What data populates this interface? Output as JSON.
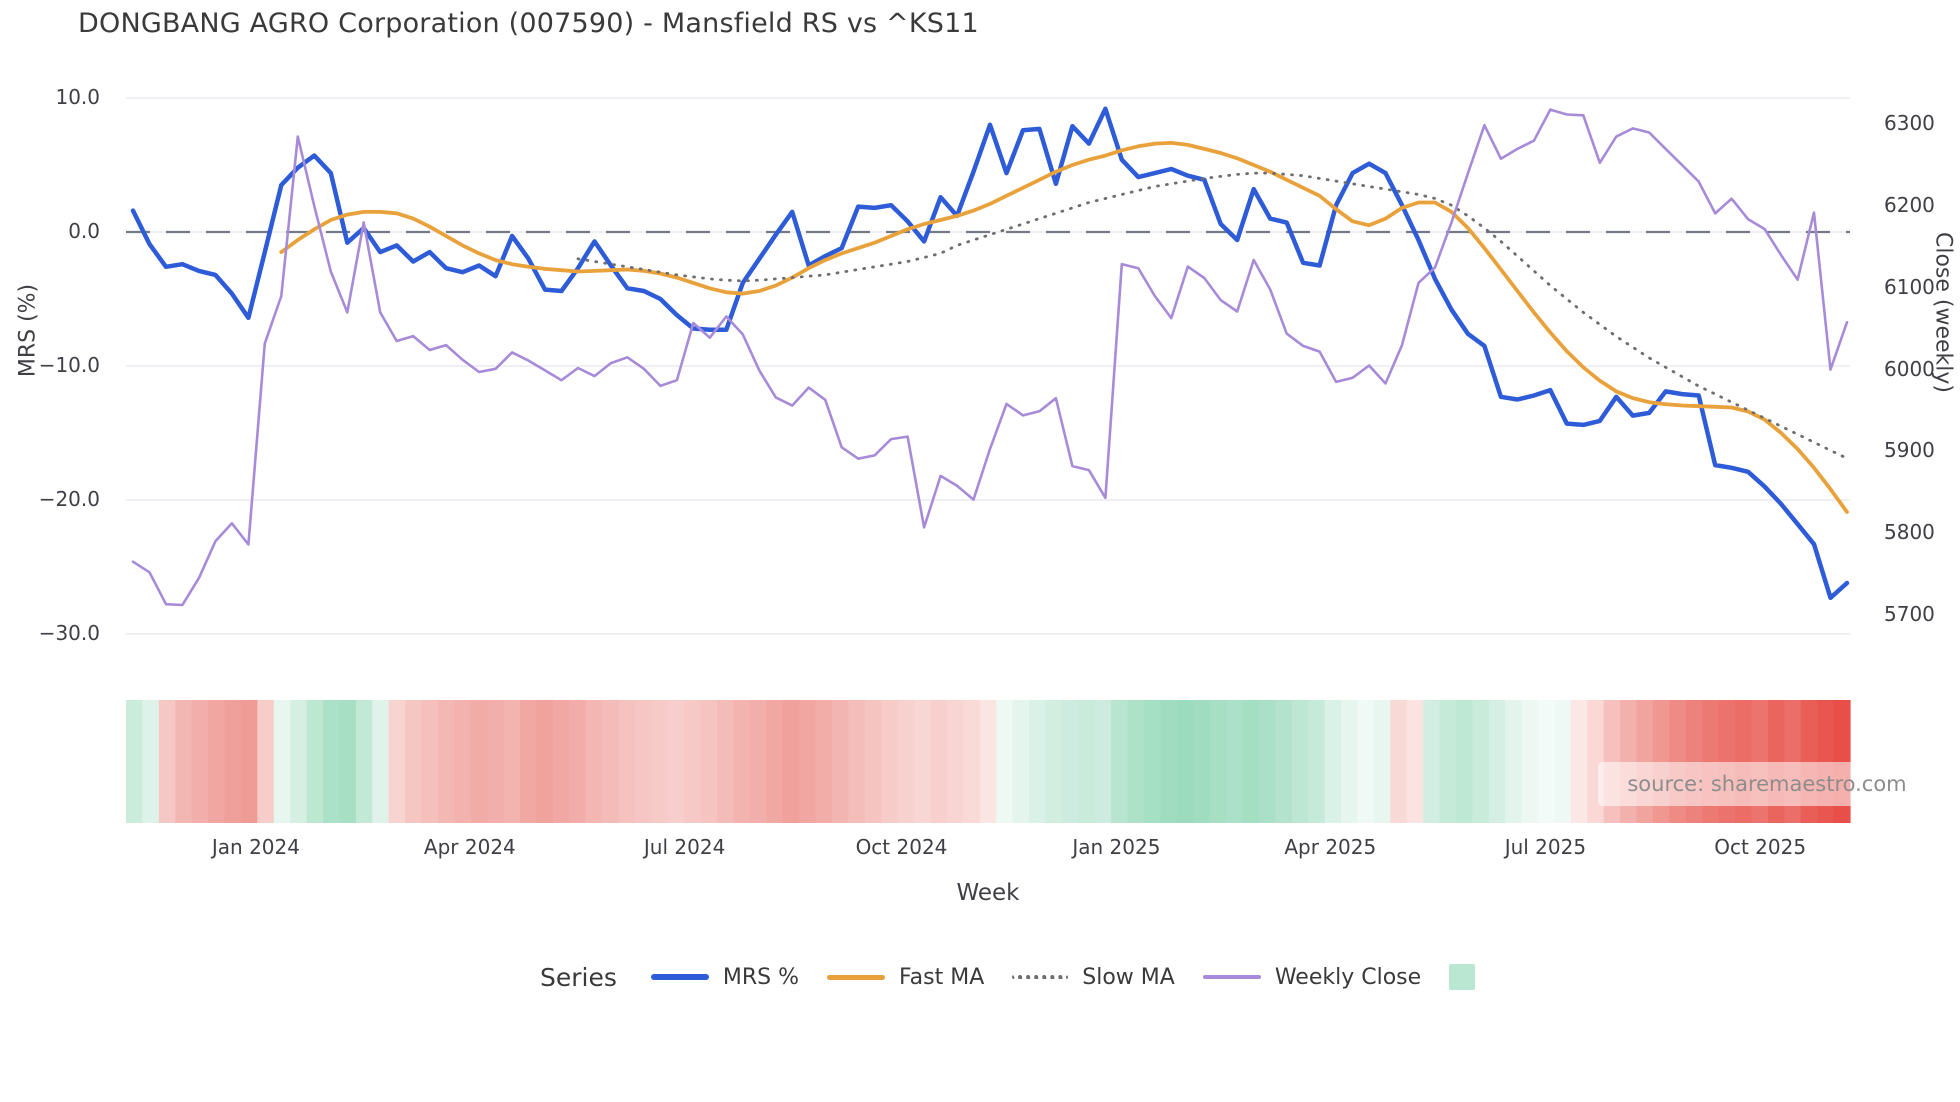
{
  "source_note": "source: sharemaestro.com",
  "legend": {
    "title": "Series",
    "items": [
      {
        "label": "MRS %",
        "color": "#2e5cd8",
        "style": "solid"
      },
      {
        "label": "Fast MA",
        "color": "#e9a23b",
        "style": "solid"
      },
      {
        "label": "Slow MA",
        "color": "#6e6e6e",
        "style": "dotted"
      },
      {
        "label": "Weekly Close",
        "color": "#a78bd8",
        "style": "solid"
      }
    ],
    "patch_color": "#b9e7d2"
  },
  "colors": {
    "background": "#ffffff",
    "gridline": "#ebebf0",
    "zero_dash_line": "#737a85",
    "tick_text": "#3f3f46",
    "title_text": "#3a3a3a",
    "source_text": "#8d8d8d"
  },
  "chart_data": {
    "type": "line",
    "title": "DONGBANG AGRO Corporation (007590) - Mansfield RS vs ^KS11",
    "xlabel": "Week",
    "ylabel_left": "MRS (%)",
    "ylabel_right": "Close (weekly)",
    "ylim_left": [
      -31.2,
      10.6
    ],
    "ylim_right": [
      5657,
      6342
    ],
    "grid": true,
    "legend_position": "bottom",
    "weeks": 105,
    "x_range_note": "weekly data, Nov 2023 to Nov 2025",
    "x_ticks": {
      "labels": [
        "Jan 2024",
        "Apr 2024",
        "Jul 2024",
        "Oct 2024",
        "Jan 2025",
        "Apr 2025",
        "Jul 2025",
        "Oct 2025"
      ],
      "week_positions": [
        7.46,
        20.44,
        33.47,
        46.63,
        59.67,
        72.65,
        85.7,
        98.73
      ]
    },
    "left_ticks": {
      "labels": [
        "10.0",
        "0.0",
        "−10.0",
        "−20.0",
        "−30.0"
      ],
      "values": [
        10,
        0,
        -10,
        -20,
        -30
      ]
    },
    "right_ticks": {
      "labels": [
        "6300",
        "6200",
        "6100",
        "6000",
        "5900",
        "5800",
        "5700"
      ],
      "values": [
        6300,
        6200,
        6100,
        6000,
        5900,
        5800,
        5700
      ]
    },
    "zero_line": true,
    "series": [
      {
        "name": "MRS %",
        "axis": "left",
        "color": "#2e5cd8",
        "width": 4.5,
        "dash": null,
        "start_week": 0,
        "values": [
          1.6,
          -0.9,
          -2.6,
          -2.4,
          -2.9,
          -3.2,
          -4.6,
          -6.4,
          -1.5,
          3.5,
          4.8,
          5.7,
          4.4,
          -0.8,
          0.3,
          -1.5,
          -1.0,
          -2.2,
          -1.5,
          -2.7,
          -3.0,
          -2.5,
          -3.3,
          -0.3,
          -2.0,
          -4.3,
          -4.4,
          -2.7,
          -0.7,
          -2.5,
          -4.2,
          -4.4,
          -5.0,
          -6.2,
          -7.2,
          -7.3,
          -7.3,
          -3.8,
          -2.0,
          -0.2,
          1.5,
          -2.5,
          -1.8,
          -1.2,
          1.9,
          1.8,
          2.0,
          0.8,
          -0.7,
          2.6,
          1.2,
          4.5,
          8.0,
          4.4,
          7.6,
          7.7,
          3.6,
          7.9,
          6.6,
          9.2,
          5.4,
          4.1,
          4.4,
          4.7,
          4.2,
          3.9,
          0.6,
          -0.6,
          3.2,
          1.0,
          0.7,
          -2.3,
          -2.5,
          2.0,
          4.4,
          5.1,
          4.4,
          2.0,
          -0.6,
          -3.5,
          -5.8,
          -7.6,
          -8.5,
          -12.3,
          -12.5,
          -12.2,
          -11.8,
          -14.3,
          -14.4,
          -14.1,
          -12.3,
          -13.7,
          -13.5,
          -11.9,
          -12.1,
          -12.2,
          -17.4,
          -17.6,
          -17.9,
          -19.0,
          -20.3,
          -21.8,
          -23.3,
          -27.3,
          -26.2
        ]
      },
      {
        "name": "Fast MA",
        "axis": "left",
        "color": "#e9a23b",
        "width": 3.8,
        "dash": null,
        "start_week": 9,
        "values": [
          -1.5,
          -0.6,
          0.2,
          0.9,
          1.3,
          1.5,
          1.5,
          1.4,
          1.0,
          0.4,
          -0.3,
          -1.0,
          -1.6,
          -2.1,
          -2.4,
          -2.6,
          -2.75,
          -2.85,
          -2.95,
          -2.9,
          -2.85,
          -2.8,
          -2.9,
          -3.1,
          -3.4,
          -3.8,
          -4.2,
          -4.5,
          -4.6,
          -4.4,
          -4.0,
          -3.4,
          -2.7,
          -2.1,
          -1.6,
          -1.2,
          -0.8,
          -0.3,
          0.2,
          0.6,
          0.9,
          1.2,
          1.6,
          2.1,
          2.7,
          3.3,
          3.9,
          4.5,
          5.0,
          5.4,
          5.7,
          6.1,
          6.4,
          6.6,
          6.65,
          6.5,
          6.2,
          5.9,
          5.5,
          5.0,
          4.5,
          3.9,
          3.3,
          2.7,
          1.7,
          0.8,
          0.5,
          1.0,
          1.8,
          2.2,
          2.2,
          1.5,
          0.3,
          -1.2,
          -2.8,
          -4.4,
          -6.0,
          -7.5,
          -8.9,
          -10.1,
          -11.1,
          -11.9,
          -12.4,
          -12.7,
          -12.85,
          -12.95,
          -13.0,
          -13.05,
          -13.1,
          -13.4,
          -14.0,
          -15.0,
          -16.2,
          -17.6,
          -19.2,
          -20.9
        ]
      },
      {
        "name": "Slow MA",
        "axis": "left",
        "color": "#6e6e6e",
        "width": 2.8,
        "dash": "1 8",
        "start_week": 27,
        "values": [
          -2.0,
          -2.2,
          -2.4,
          -2.6,
          -2.8,
          -3.0,
          -3.2,
          -3.35,
          -3.5,
          -3.6,
          -3.65,
          -3.6,
          -3.5,
          -3.4,
          -3.3,
          -3.2,
          -3.0,
          -2.8,
          -2.6,
          -2.4,
          -2.2,
          -1.9,
          -1.6,
          -1.0,
          -0.6,
          -0.2,
          0.2,
          0.6,
          1.0,
          1.4,
          1.8,
          2.2,
          2.5,
          2.8,
          3.1,
          3.4,
          3.6,
          3.8,
          4.0,
          4.15,
          4.3,
          4.4,
          4.4,
          4.3,
          4.2,
          4.0,
          3.8,
          3.6,
          3.4,
          3.2,
          3.0,
          2.8,
          2.5,
          2.0,
          1.2,
          0.3,
          -0.7,
          -1.8,
          -2.9,
          -4.0,
          -5.0,
          -6.0,
          -6.9,
          -7.8,
          -8.6,
          -9.4,
          -10.1,
          -10.8,
          -11.5,
          -12.1,
          -12.7,
          -13.3,
          -13.9,
          -14.5,
          -15.1,
          -15.7,
          -16.3,
          -16.9
        ]
      },
      {
        "name": "Weekly Close",
        "axis": "right",
        "color": "#a78bd8",
        "width": 2.6,
        "dash": null,
        "start_week": 0,
        "values": [
          5765,
          5752,
          5713,
          5712,
          5745,
          5790,
          5812,
          5786,
          6032,
          6090,
          6285,
          6200,
          6120,
          6070,
          6180,
          6070,
          6035,
          6041,
          6024,
          6030,
          6012,
          5997,
          6001,
          6021,
          6011,
          5999,
          5987,
          6002,
          5992,
          6008,
          6015,
          6001,
          5980,
          5987,
          6057,
          6039,
          6065,
          6043,
          5999,
          5966,
          5956,
          5978,
          5963,
          5905,
          5891,
          5895,
          5915,
          5918,
          5807,
          5870,
          5858,
          5841,
          5903,
          5958,
          5944,
          5949,
          5965,
          5882,
          5877,
          5843,
          6129,
          6124,
          6090,
          6063,
          6126,
          6112,
          6085,
          6071,
          6134,
          6098,
          6044,
          6029,
          6022,
          5985,
          5990,
          6005,
          5983,
          6030,
          6106,
          6125,
          6180,
          6240,
          6299,
          6258,
          6270,
          6280,
          6318,
          6312,
          6311,
          6253,
          6285,
          6295,
          6290,
          6270,
          6250,
          6230,
          6191,
          6209,
          6184,
          6172,
          6140,
          6110,
          6192,
          6000,
          6058
        ]
      }
    ],
    "heatmap_colors": [
      "#cbebdb",
      "#ddf2e8",
      "#f6c8c5",
      "#f3b7b3",
      "#f2aeaa",
      "#f1a6a1",
      "#f0a09b",
      "#ef9b96",
      "#f7cdca",
      "#e8f6f0",
      "#d5efe3",
      "#bce7d1",
      "#abe1c8",
      "#a6dfc4",
      "#c2e9d6",
      "#e0f3ea",
      "#f8d4d1",
      "#f6c6c3",
      "#f5bfbb",
      "#f4b8b4",
      "#f3b2ae",
      "#f2aca8",
      "#f2aeaa",
      "#f3b3af",
      "#f1a8a3",
      "#f0a29d",
      "#f1a8a4",
      "#f2adaa",
      "#f3b6b2",
      "#f4bcb8",
      "#f5c2bf",
      "#f5c6c3",
      "#f6cac7",
      "#f7cecb",
      "#f6c9c6",
      "#f5c3c0",
      "#f4bcb8",
      "#f3b4b0",
      "#f2aeaa",
      "#f1a7a2",
      "#f0a19c",
      "#f1a6a1",
      "#f2ada9",
      "#f3b5b1",
      "#f4bdb9",
      "#f5c4c1",
      "#f6cbc8",
      "#f7d1ce",
      "#f8d6d3",
      "#f7d0cd",
      "#f8d5d2",
      "#f9dad7",
      "#fbe5e3",
      "#eff9f4",
      "#e4f5ee",
      "#daf1e7",
      "#d1eee1",
      "#cdecdf",
      "#c8ebdb",
      "#cdecdf",
      "#b7e5cf",
      "#ade1c8",
      "#a5dfc4",
      "#a0ddc0",
      "#9cdbbe",
      "#a0ddc0",
      "#a6dfc4",
      "#abe1c8",
      "#a4dec3",
      "#aae0c7",
      "#b3e3cc",
      "#bde7d3",
      "#c6ead9",
      "#d9f1e6",
      "#e6f6ef",
      "#eff9f5",
      "#e8f6f0",
      "#f9d9d6",
      "#fbe3e1",
      "#d2eee2",
      "#c5ead8",
      "#bfe8d4",
      "#c8ebda",
      "#d5efe4",
      "#e3f4ed",
      "#edf8f3",
      "#f3fbf8",
      "#eef9f5",
      "#fbe8e6",
      "#f9d8d5",
      "#f5c0bd",
      "#f3b1ad",
      "#f1a39e",
      "#f09791",
      "#ee8b85",
      "#ed827c",
      "#ed7973",
      "#ec736d",
      "#ec6c66",
      "#ed746e",
      "#eb655f",
      "#ec6e68",
      "#ea5e58",
      "#e95650",
      "#e94f49"
    ]
  }
}
